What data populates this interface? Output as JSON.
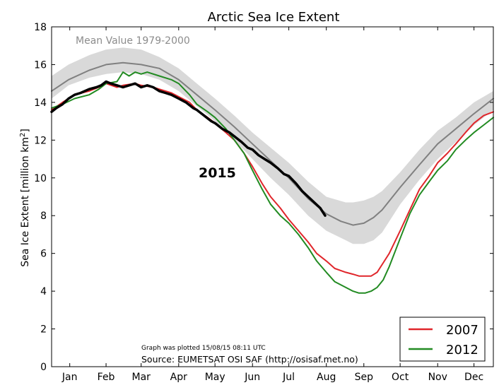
{
  "chart_data": {
    "type": "line",
    "title": "Arctic Sea Ice Extent",
    "ylabel": "Sea Ice Extent [million km",
    "ylabel_sup": "2",
    "ylabel_end": "]",
    "xlabel": "",
    "ylim": [
      0,
      18
    ],
    "yticks": [
      0,
      2,
      4,
      6,
      8,
      10,
      12,
      14,
      16,
      18
    ],
    "xlim": [
      1,
      366
    ],
    "months": [
      {
        "label": "Jan",
        "day": 16
      },
      {
        "label": "Feb",
        "day": 46
      },
      {
        "label": "Mar",
        "day": 75
      },
      {
        "label": "Apr",
        "day": 106
      },
      {
        "label": "May",
        "day": 136
      },
      {
        "label": "Jun",
        "day": 167
      },
      {
        "label": "Jul",
        "day": 197
      },
      {
        "label": "Aug",
        "day": 228
      },
      {
        "label": "Sep",
        "day": 259
      },
      {
        "label": "Oct",
        "day": 289
      },
      {
        "label": "Nov",
        "day": 320
      },
      {
        "label": "Dec",
        "day": 350
      }
    ],
    "grid": false,
    "legend_position": "bottom-right",
    "annotations": {
      "mean_label": "Mean Value 1979-2000",
      "year_label": "2015",
      "plotted_note": "Graph was plotted 15/08/15 08:11 UTC",
      "source": "Source: EUMETSAT OSI SAF (http://osisaf.met.no)"
    },
    "band": {
      "x": [
        1,
        15,
        32,
        46,
        60,
        75,
        90,
        106,
        121,
        136,
        152,
        167,
        182,
        197,
        213,
        228,
        244,
        250,
        259,
        267,
        274,
        289,
        305,
        320,
        335,
        350,
        366
      ],
      "upper": [
        15.4,
        16.0,
        16.5,
        16.8,
        16.9,
        16.8,
        16.4,
        15.8,
        15.0,
        14.2,
        13.3,
        12.4,
        11.6,
        10.8,
        9.8,
        9.0,
        8.7,
        8.7,
        8.8,
        9.0,
        9.3,
        10.3,
        11.5,
        12.5,
        13.2,
        14.0,
        14.6
      ],
      "lower": [
        14.2,
        14.9,
        15.3,
        15.5,
        15.6,
        15.5,
        15.2,
        14.6,
        13.8,
        13.0,
        12.0,
        11.0,
        10.0,
        9.1,
        8.0,
        7.2,
        6.7,
        6.5,
        6.5,
        6.7,
        7.1,
        8.6,
        9.9,
        11.0,
        11.9,
        12.8,
        13.6
      ]
    },
    "series": [
      {
        "name": "Mean Value 1979-2000",
        "color": "#808080",
        "legend": false,
        "x": [
          1,
          15,
          32,
          46,
          60,
          75,
          90,
          106,
          121,
          136,
          152,
          167,
          182,
          197,
          213,
          228,
          240,
          250,
          259,
          267,
          274,
          289,
          305,
          320,
          335,
          350,
          366
        ],
        "y": [
          14.6,
          15.2,
          15.7,
          16.0,
          16.1,
          16.0,
          15.8,
          15.2,
          14.4,
          13.6,
          12.7,
          11.8,
          10.9,
          10.0,
          8.9,
          8.1,
          7.7,
          7.5,
          7.6,
          7.9,
          8.3,
          9.5,
          10.7,
          11.8,
          12.6,
          13.4,
          14.2
        ]
      },
      {
        "name": "2007",
        "color": "#e0262b",
        "legend": true,
        "x": [
          1,
          10,
          20,
          32,
          40,
          46,
          55,
          60,
          70,
          75,
          85,
          90,
          100,
          106,
          115,
          121,
          130,
          136,
          145,
          152,
          160,
          167,
          175,
          182,
          190,
          197,
          205,
          213,
          220,
          228,
          235,
          244,
          250,
          255,
          260,
          265,
          270,
          275,
          280,
          289,
          297,
          305,
          313,
          320,
          328,
          335,
          343,
          350,
          358,
          366
        ],
        "y": [
          13.6,
          14.0,
          14.4,
          14.6,
          14.8,
          15.0,
          14.8,
          14.9,
          15.0,
          14.9,
          14.8,
          14.7,
          14.5,
          14.3,
          14.0,
          13.6,
          13.2,
          12.9,
          12.4,
          12.0,
          11.3,
          10.6,
          9.7,
          9.0,
          8.4,
          7.8,
          7.2,
          6.6,
          6.0,
          5.6,
          5.2,
          5.0,
          4.9,
          4.8,
          4.8,
          4.8,
          5.0,
          5.5,
          6.0,
          7.2,
          8.3,
          9.4,
          10.1,
          10.8,
          11.3,
          11.8,
          12.4,
          12.9,
          13.3,
          13.5
        ]
      },
      {
        "name": "2012",
        "color": "#228b22",
        "legend": true,
        "x": [
          1,
          10,
          20,
          32,
          40,
          46,
          55,
          60,
          65,
          70,
          75,
          80,
          90,
          100,
          106,
          115,
          121,
          130,
          136,
          145,
          152,
          160,
          167,
          175,
          182,
          190,
          197,
          205,
          213,
          220,
          228,
          235,
          244,
          250,
          255,
          260,
          265,
          270,
          275,
          280,
          289,
          297,
          305,
          313,
          320,
          328,
          335,
          343,
          350,
          358,
          366
        ],
        "y": [
          13.7,
          13.9,
          14.2,
          14.4,
          14.7,
          15.0,
          15.1,
          15.6,
          15.4,
          15.6,
          15.5,
          15.6,
          15.4,
          15.2,
          15.0,
          14.4,
          13.9,
          13.5,
          13.2,
          12.6,
          12.0,
          11.3,
          10.4,
          9.4,
          8.6,
          8.0,
          7.6,
          7.0,
          6.3,
          5.6,
          5.0,
          4.5,
          4.2,
          4.0,
          3.9,
          3.9,
          4.0,
          4.2,
          4.6,
          5.3,
          6.8,
          8.1,
          9.1,
          9.8,
          10.4,
          10.9,
          11.5,
          12.0,
          12.4,
          12.8,
          13.2
        ]
      },
      {
        "name": "2015",
        "color": "#000000",
        "legend": false,
        "x": [
          1,
          5,
          10,
          15,
          20,
          25,
          32,
          38,
          42,
          46,
          50,
          55,
          60,
          65,
          70,
          75,
          80,
          85,
          90,
          95,
          100,
          106,
          112,
          118,
          121,
          127,
          133,
          136,
          142,
          148,
          152,
          158,
          163,
          167,
          172,
          177,
          182,
          188,
          193,
          197,
          203,
          208,
          213,
          218,
          223,
          227
        ],
        "y": [
          13.5,
          13.7,
          13.9,
          14.2,
          14.4,
          14.5,
          14.7,
          14.8,
          14.9,
          15.1,
          15.0,
          14.9,
          14.8,
          14.9,
          15.0,
          14.8,
          14.9,
          14.8,
          14.6,
          14.5,
          14.4,
          14.2,
          14.0,
          13.7,
          13.6,
          13.3,
          13.0,
          12.9,
          12.6,
          12.4,
          12.2,
          11.9,
          11.6,
          11.5,
          11.2,
          11.0,
          10.8,
          10.5,
          10.2,
          10.1,
          9.7,
          9.3,
          9.0,
          8.7,
          8.4,
          8.0
        ]
      }
    ]
  }
}
